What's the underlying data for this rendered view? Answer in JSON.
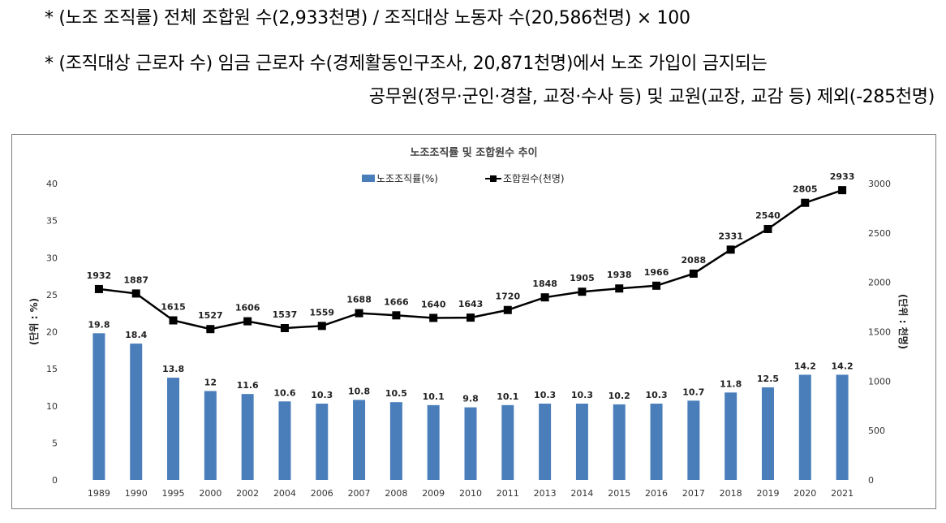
{
  "notes": {
    "line1": "* (노조 조직률) 전체 조합원 수(2,933천명) / 조직대상 노동자 수(20,586천명) × 100",
    "line2": "* (조직대상 근로자 수) 임금 근로자 수(경제활동인구조사, 20,871천명)에서 노조 가입이 금지되는",
    "line3": "공무원(정무·군인·경찰, 교정·수사 등) 및 교원(교장, 교감 등) 제외(-285천명)"
  },
  "chart_data": {
    "type": "bar",
    "title": "노조조직률 및 조합원수 추이",
    "categories": [
      "1989",
      "1990",
      "1995",
      "2000",
      "2002",
      "2004",
      "2006",
      "2007",
      "2008",
      "2009",
      "2010",
      "2011",
      "2013",
      "2014",
      "2015",
      "2016",
      "2017",
      "2018",
      "2019",
      "2020",
      "2021"
    ],
    "series": [
      {
        "name": "노조조직률(%)",
        "type": "bar",
        "axis": "left",
        "color": "#4a7ebb",
        "values": [
          19.8,
          18.4,
          13.8,
          12,
          11.6,
          10.6,
          10.3,
          10.8,
          10.5,
          10.1,
          9.8,
          10.1,
          10.3,
          10.3,
          10.2,
          10.3,
          10.7,
          11.8,
          12.5,
          14.2,
          14.2
        ]
      },
      {
        "name": "조합원수(천명)",
        "type": "line",
        "axis": "right",
        "color": "#000000",
        "values": [
          1932,
          1887,
          1615,
          1527,
          1606,
          1537,
          1559,
          1688,
          1666,
          1640,
          1643,
          1720,
          1848,
          1905,
          1938,
          1966,
          2088,
          2331,
          2540,
          2805,
          2933
        ]
      }
    ],
    "ylabel_left": "(단위 : %)",
    "ylabel_right": "(단위 : 천명)",
    "ylim_left": [
      0,
      40
    ],
    "ylim_right": [
      0,
      3000
    ],
    "yticks_left": [
      0,
      5,
      10,
      15,
      20,
      25,
      30,
      35,
      40
    ],
    "yticks_right": [
      0,
      500,
      1000,
      1500,
      2000,
      2500,
      3000
    ],
    "grid": false,
    "legend_position": "top-center"
  }
}
